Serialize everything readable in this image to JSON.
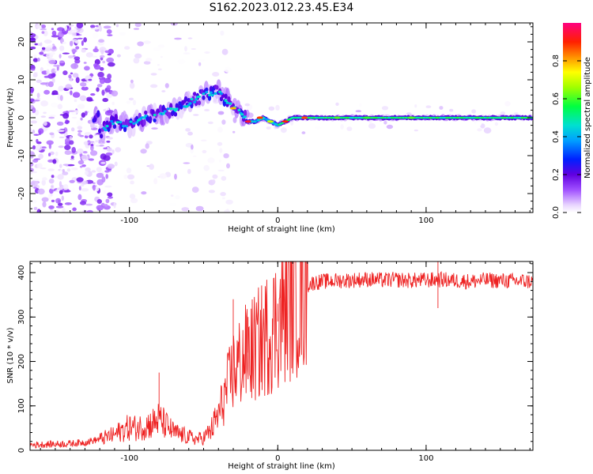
{
  "chart_data": [
    {
      "type": "heatmap",
      "title": "S162.2023.012.23.45.E34",
      "xlabel": "Height of straight line (km)",
      "ylabel": "Frequency (Hz)",
      "xlim": [
        -167,
        172
      ],
      "ylim": [
        -25,
        25
      ],
      "x_ticks": [
        -100,
        0,
        100
      ],
      "y_ticks": [
        -20,
        -10,
        0,
        10,
        20
      ],
      "colorbar": {
        "label": "Normalized spectral amplitude",
        "range": [
          0.0,
          1.0
        ],
        "ticks": [
          0.0,
          0.2,
          0.4,
          0.6,
          0.8
        ],
        "colormap": [
          "#ffffff",
          "#e8d4ff",
          "#a050ff",
          "#6000e0",
          "#0020ff",
          "#00a0ff",
          "#00e0d0",
          "#00ff40",
          "#a0ff00",
          "#ffff00",
          "#ff9000",
          "#ff2000",
          "#ff0080"
        ]
      },
      "ridge": {
        "x": [
          -120,
          -110,
          -100,
          -90,
          -80,
          -70,
          -60,
          -50,
          -40,
          -35,
          -30,
          -25,
          -20,
          -15,
          -10,
          -5,
          0,
          5,
          10,
          20,
          40,
          60,
          80,
          100,
          120,
          140,
          160,
          170
        ],
        "y": [
          -4,
          -1,
          -2,
          0,
          1,
          2,
          4,
          6,
          7,
          5,
          3,
          1,
          -1,
          -1,
          0,
          -1,
          -2,
          -1,
          0,
          0,
          0,
          0,
          0,
          0,
          0,
          0,
          0,
          0
        ]
      }
    },
    {
      "type": "line",
      "title": "",
      "xlabel": "Height of straight line (km)",
      "ylabel": "SNR (10 * v/v)",
      "xlim": [
        -167,
        172
      ],
      "ylim": [
        0,
        425
      ],
      "x_ticks": [
        -100,
        0,
        100
      ],
      "y_ticks": [
        0,
        100,
        200,
        300,
        400
      ],
      "color": "#ee2222",
      "series": [
        {
          "x": [
            -167,
            -150,
            -140,
            -130,
            -120,
            -110,
            -105,
            -100,
            -95,
            -90,
            -85,
            -80,
            -75,
            -70,
            -65,
            -60,
            -55,
            -50,
            -45,
            -40,
            -35,
            -30,
            -25,
            -20,
            -15,
            -10,
            -5,
            0,
            5,
            10,
            15,
            20,
            25,
            30,
            40,
            50,
            60,
            70,
            80,
            90,
            100,
            110,
            120,
            130,
            140,
            150,
            160,
            172
          ],
          "values": [
            12,
            14,
            15,
            18,
            25,
            35,
            45,
            52,
            50,
            55,
            60,
            70,
            55,
            40,
            35,
            30,
            25,
            28,
            45,
            80,
            130,
            180,
            200,
            220,
            230,
            250,
            270,
            290,
            320,
            345,
            360,
            372,
            378,
            380,
            382,
            383,
            385,
            383,
            384,
            382,
            383,
            384,
            382,
            380,
            383,
            382,
            381,
            380
          ]
        }
      ]
    }
  ]
}
